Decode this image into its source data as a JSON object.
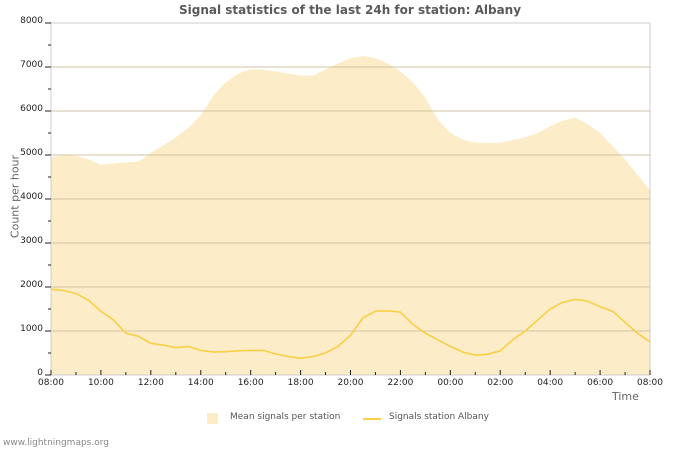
{
  "header": {
    "title": "Signal statistics of the last 24h for station: Albany"
  },
  "axes": {
    "ylabel": "Count per hour",
    "xlabel": "Time",
    "yticks": [
      "0",
      "1000",
      "2000",
      "3000",
      "4000",
      "5000",
      "6000",
      "7000",
      "8000"
    ],
    "xticks": [
      "08:00",
      "10:00",
      "12:00",
      "14:00",
      "16:00",
      "18:00",
      "20:00",
      "22:00",
      "00:00",
      "02:00",
      "04:00",
      "06:00",
      "08:00"
    ]
  },
  "legend": {
    "area_label": "Mean signals per station",
    "line_label": "Signals station Albany"
  },
  "footer": {
    "text": "www.lightningmaps.org"
  },
  "colors": {
    "area": "#fdecc8",
    "line": "#f8cf45",
    "grid": "#d3c3a3",
    "axis": "#cccccc"
  },
  "chart_data": {
    "type": "area",
    "title": "Signal statistics of the last 24h for station: Albany",
    "xlabel": "Time",
    "ylabel": "Count per hour",
    "ylim": [
      0,
      8000
    ],
    "grid": true,
    "legend_position": "bottom",
    "x": [
      "08:00",
      "08:30",
      "09:00",
      "09:30",
      "10:00",
      "10:30",
      "11:00",
      "11:30",
      "12:00",
      "12:30",
      "13:00",
      "13:30",
      "14:00",
      "14:30",
      "15:00",
      "15:30",
      "16:00",
      "16:30",
      "17:00",
      "17:30",
      "18:00",
      "18:30",
      "19:00",
      "19:30",
      "20:00",
      "20:30",
      "21:00",
      "21:30",
      "22:00",
      "22:30",
      "23:00",
      "23:30",
      "00:00",
      "00:30",
      "01:00",
      "01:30",
      "02:00",
      "02:30",
      "03:00",
      "03:30",
      "04:00",
      "04:30",
      "05:00",
      "05:30",
      "06:00",
      "06:30",
      "07:00",
      "07:30",
      "08:00"
    ],
    "series": [
      {
        "name": "Mean signals per station",
        "type": "area",
        "values": [
          4950,
          4990,
          4980,
          4900,
          4780,
          4810,
          4830,
          4850,
          5050,
          5220,
          5400,
          5620,
          5900,
          6350,
          6650,
          6850,
          6950,
          6940,
          6900,
          6850,
          6800,
          6800,
          6950,
          7080,
          7200,
          7250,
          7200,
          7080,
          6900,
          6650,
          6300,
          5800,
          5500,
          5350,
          5280,
          5270,
          5280,
          5340,
          5400,
          5500,
          5650,
          5780,
          5850,
          5700,
          5500,
          5200,
          4900,
          4550,
          4200
        ]
      },
      {
        "name": "Signals station Albany",
        "type": "line",
        "values": [
          1950,
          1920,
          1850,
          1700,
          1450,
          1250,
          950,
          880,
          720,
          680,
          620,
          650,
          560,
          520,
          530,
          550,
          560,
          560,
          480,
          420,
          380,
          420,
          500,
          650,
          900,
          1300,
          1450,
          1460,
          1430,
          1150,
          950,
          800,
          650,
          520,
          450,
          470,
          550,
          800,
          1000,
          1250,
          1500,
          1650,
          1720,
          1680,
          1550,
          1450,
          1200,
          950,
          750
        ]
      }
    ]
  }
}
